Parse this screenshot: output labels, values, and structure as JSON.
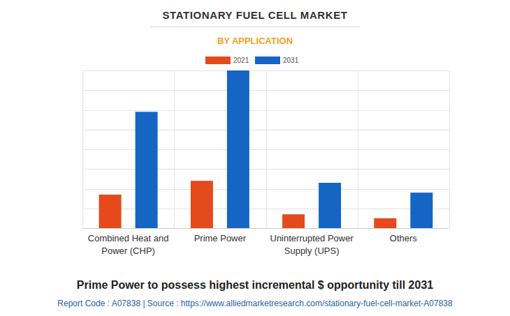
{
  "chart_data": {
    "type": "bar",
    "title": "STATIONARY FUEL CELL MARKET",
    "subtitle": "BY APPLICATION",
    "categories": [
      "Combined Heat and Power (CHP)",
      "Prime Power",
      "Uninterrupted Power Supply (UPS)",
      "Others"
    ],
    "series": [
      {
        "name": "2021",
        "color": "#e44a1b",
        "values": [
          1.7,
          2.4,
          0.7,
          0.5
        ]
      },
      {
        "name": "2031",
        "color": "#1565c4",
        "values": [
          5.9,
          8.0,
          2.3,
          1.8
        ]
      }
    ],
    "ylim": [
      0,
      8
    ],
    "yticks": [
      0,
      1,
      2,
      3,
      4,
      5,
      6,
      7,
      8
    ],
    "grid": true,
    "legend": "top",
    "tick_labels": "x",
    "annotations": [
      "Prime Power to possess highest incremental $ opportunity till 2031",
      "Report Code : A07838  |  Source : https://www.alliedmarketresearch.com/stationary-fuel-cell-market-A07838"
    ]
  }
}
